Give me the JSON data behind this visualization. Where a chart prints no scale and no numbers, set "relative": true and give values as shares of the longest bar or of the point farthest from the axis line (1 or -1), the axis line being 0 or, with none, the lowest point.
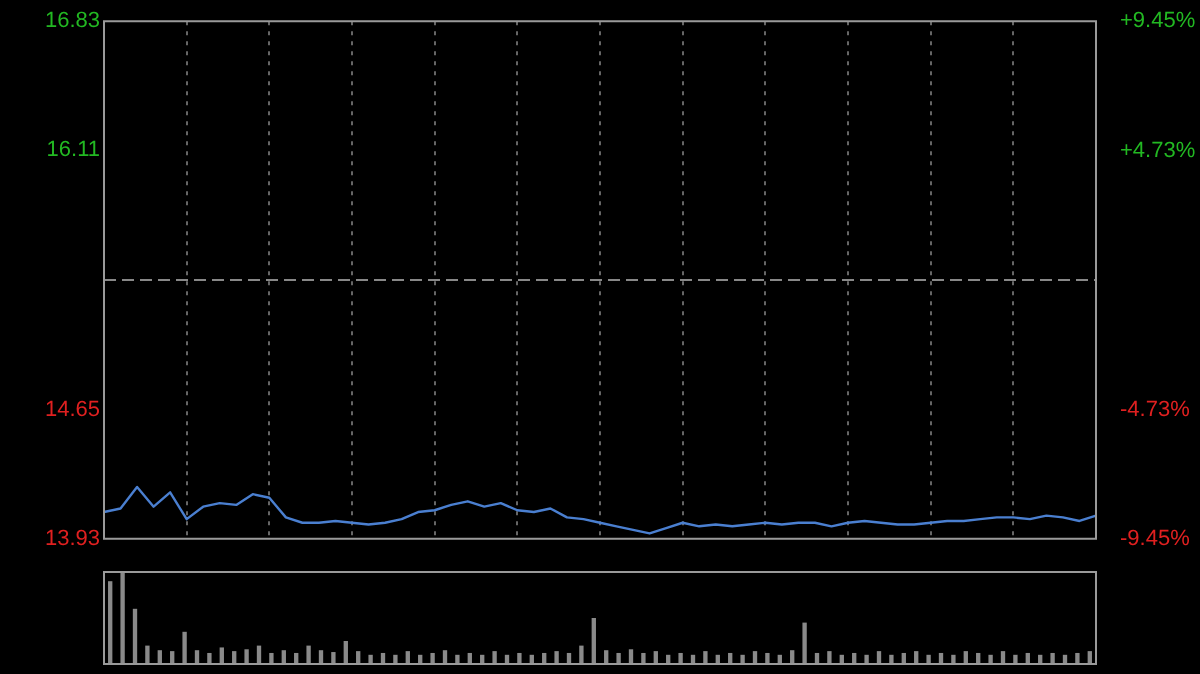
{
  "chart_data": [
    {
      "type": "line",
      "categories": [
        null,
        null,
        null,
        null,
        null,
        null,
        null,
        null,
        null,
        null,
        null,
        null,
        null,
        null,
        null,
        null,
        null,
        null,
        null,
        null,
        null,
        null,
        null,
        null,
        null,
        null,
        null,
        null,
        null,
        null,
        null,
        null,
        null,
        null,
        null,
        null,
        null,
        null,
        null,
        null,
        null,
        null,
        null,
        null,
        null,
        null,
        null,
        null,
        null,
        null,
        null,
        null,
        null,
        null,
        null,
        null,
        null,
        null,
        null,
        null,
        null
      ],
      "series": [
        {
          "color": "#4a7fd0",
          "values": [
            14.08,
            14.1,
            14.22,
            14.11,
            14.19,
            14.04,
            14.11,
            14.13,
            14.12,
            14.18,
            14.16,
            14.05,
            14.02,
            14.02,
            14.03,
            14.02,
            14.01,
            14.02,
            14.04,
            14.08,
            14.09,
            14.12,
            14.14,
            14.11,
            14.13,
            14.09,
            14.08,
            14.1,
            14.05,
            14.04,
            14.02,
            14.0,
            13.98,
            13.96,
            13.99,
            14.02,
            14.0,
            14.01,
            14.0,
            14.01,
            14.02,
            14.01,
            14.02,
            14.02,
            14.0,
            14.02,
            14.03,
            14.02,
            14.01,
            14.01,
            14.02,
            14.03,
            14.03,
            14.04,
            14.05,
            14.05,
            14.04,
            14.06,
            14.05,
            14.03,
            14.06
          ]
        }
      ],
      "ylim": [
        13.93,
        16.83
      ],
      "yticks": [
        13.93,
        14.65,
        16.11,
        16.83
      ],
      "y2lim": [
        -9.45,
        9.45
      ],
      "y2ticks": [
        {
          "value": -9.45,
          "label": "-9.45%"
        },
        {
          "value": -4.73,
          "label": "-4.73%"
        },
        {
          "value": 4.73,
          "label": "+4.73%"
        },
        {
          "value": 9.45,
          "label": "+9.45%"
        }
      ],
      "ref_lines": [
        {
          "axis": "y",
          "value": 15.38,
          "color": "#888888",
          "line_style": "dashed"
        }
      ],
      "grid": "x",
      "tick_labels": "y",
      "legend": false,
      "marker": "none"
    },
    {
      "type": "bar",
      "relative": true,
      "categories": [
        null,
        null,
        null,
        null,
        null,
        null,
        null,
        null,
        null,
        null,
        null,
        null,
        null,
        null,
        null,
        null,
        null,
        null,
        null,
        null,
        null,
        null,
        null,
        null,
        null,
        null,
        null,
        null,
        null,
        null,
        null,
        null,
        null,
        null,
        null,
        null,
        null,
        null,
        null,
        null,
        null,
        null,
        null,
        null,
        null,
        null,
        null,
        null,
        null,
        null,
        null,
        null,
        null,
        null,
        null,
        null,
        null,
        null,
        null,
        null,
        null,
        null,
        null,
        null,
        null,
        null,
        null,
        null,
        null,
        null,
        null,
        null,
        null,
        null,
        null,
        null,
        null,
        null,
        null,
        null
      ],
      "color": "#8a8a8a",
      "values": [
        0.9,
        1.0,
        0.6,
        0.2,
        0.15,
        0.14,
        0.35,
        0.15,
        0.12,
        0.18,
        0.14,
        0.16,
        0.2,
        0.12,
        0.15,
        0.12,
        0.2,
        0.15,
        0.13,
        0.25,
        0.14,
        0.1,
        0.12,
        0.1,
        0.14,
        0.1,
        0.12,
        0.15,
        0.1,
        0.12,
        0.1,
        0.14,
        0.1,
        0.12,
        0.1,
        0.12,
        0.14,
        0.12,
        0.2,
        0.5,
        0.15,
        0.12,
        0.16,
        0.12,
        0.14,
        0.1,
        0.12,
        0.1,
        0.14,
        0.1,
        0.12,
        0.1,
        0.14,
        0.12,
        0.1,
        0.15,
        0.45,
        0.12,
        0.14,
        0.1,
        0.12,
        0.1,
        0.14,
        0.1,
        0.12,
        0.14,
        0.1,
        0.12,
        0.1,
        0.14,
        0.12,
        0.1,
        0.14,
        0.1,
        0.12,
        0.1,
        0.12,
        0.1,
        0.12,
        0.14
      ],
      "legend": false
    }
  ]
}
